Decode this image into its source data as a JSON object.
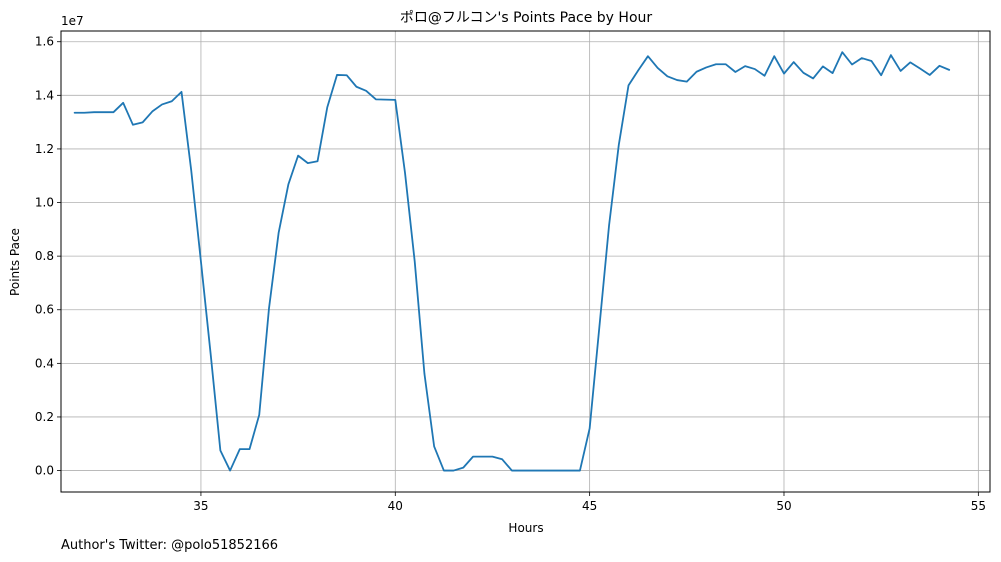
{
  "chart_data": {
    "type": "line",
    "title": "ポロ@フルコン's Points Pace by Hour",
    "xlabel": "Hours",
    "ylabel": "Points Pace",
    "y_offset_label": "1e7",
    "y_multiplier": 10000000,
    "xlim": [
      31.4,
      55.3
    ],
    "ylim": [
      -0.08,
      1.64
    ],
    "x_ticks": [
      35,
      40,
      45,
      50,
      55
    ],
    "y_ticks": [
      0.0,
      0.2,
      0.4,
      0.6,
      0.8,
      1.0,
      1.2,
      1.4,
      1.6
    ],
    "grid": true,
    "series": [
      {
        "color": "#1f77b4",
        "x": [
          31.75,
          32.0,
          32.25,
          32.5,
          32.75,
          33.0,
          33.25,
          33.5,
          33.75,
          34.0,
          34.25,
          34.5,
          34.75,
          35.0,
          35.25,
          35.5,
          35.75,
          36.0,
          36.25,
          36.5,
          36.75,
          37.0,
          37.25,
          37.5,
          37.75,
          38.0,
          38.25,
          38.5,
          38.75,
          39.0,
          39.25,
          39.5,
          39.75,
          40.0,
          40.25,
          40.5,
          40.75,
          41.0,
          41.25,
          41.5,
          41.75,
          42.0,
          42.25,
          42.5,
          42.75,
          43.0,
          43.25,
          43.5,
          43.75,
          44.0,
          44.25,
          44.5,
          44.75,
          45.0,
          45.25,
          45.5,
          45.75,
          46.0,
          46.25,
          46.5,
          46.75,
          47.0,
          47.25,
          47.5,
          47.75,
          48.0,
          48.25,
          48.5,
          48.75,
          49.0,
          49.25,
          49.5,
          49.75,
          50.0,
          50.25,
          50.5,
          50.75,
          51.0,
          51.25,
          51.5,
          51.75,
          52.0,
          52.25,
          52.5,
          52.75,
          53.0,
          53.25,
          53.5,
          53.75,
          54.0,
          54.25
        ],
        "values": [
          1.335,
          1.335,
          1.337,
          1.337,
          1.337,
          1.372,
          1.29,
          1.299,
          1.34,
          1.366,
          1.378,
          1.413,
          1.12,
          0.78,
          0.435,
          0.075,
          0.0,
          0.08,
          0.08,
          0.208,
          0.604,
          0.888,
          1.068,
          1.175,
          1.147,
          1.154,
          1.355,
          1.476,
          1.475,
          1.432,
          1.417,
          1.385,
          1.384,
          1.383,
          1.111,
          0.78,
          0.361,
          0.09,
          0.0,
          0.0,
          0.011,
          0.052,
          0.052,
          0.052,
          0.042,
          0.0,
          0.0,
          0.0,
          0.0,
          0.0,
          0.0,
          0.0,
          0.0,
          0.157,
          0.535,
          0.915,
          1.215,
          1.437,
          1.493,
          1.546,
          1.502,
          1.471,
          1.457,
          1.451,
          1.488,
          1.504,
          1.516,
          1.516,
          1.487,
          1.509,
          1.498,
          1.473,
          1.546,
          1.481,
          1.524,
          1.484,
          1.463,
          1.508,
          1.483,
          1.561,
          1.515,
          1.539,
          1.528,
          1.475,
          1.55,
          1.491,
          1.523,
          1.5,
          1.476,
          1.51,
          1.495
        ]
      }
    ]
  },
  "footer": {
    "text": "Author's Twitter: @polo51852166"
  }
}
